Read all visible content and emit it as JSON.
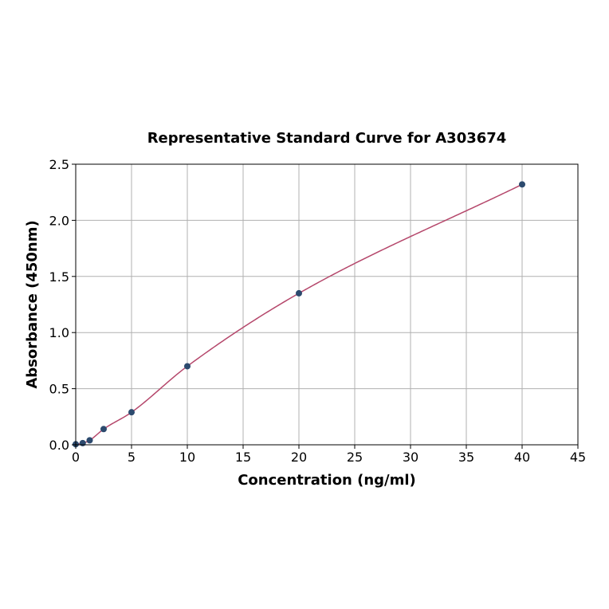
{
  "chart_data": {
    "type": "scatter",
    "title": "Representative Standard Curve for A303674",
    "xlabel": "Concentration (ng/ml)",
    "ylabel": "Absorbance (450nm)",
    "xlim": [
      0,
      45
    ],
    "ylim": [
      0,
      2.5
    ],
    "xticks": [
      0,
      5,
      10,
      15,
      20,
      25,
      30,
      35,
      40,
      45
    ],
    "yticks": [
      0.0,
      0.5,
      1.0,
      1.5,
      2.0,
      2.5
    ],
    "ytick_labels": [
      "0.0",
      "0.5",
      "1.0",
      "1.5",
      "2.0",
      "2.5"
    ],
    "grid": true,
    "points": {
      "x": [
        0,
        0.625,
        1.25,
        2.5,
        5,
        10,
        20,
        40
      ],
      "y": [
        0.005,
        0.015,
        0.04,
        0.14,
        0.29,
        0.7,
        1.35,
        2.32
      ]
    },
    "fit_curve": true,
    "colors": {
      "points": "#2c4a6e",
      "curve": "#b5476b",
      "grid": "#b0b0b0"
    }
  }
}
